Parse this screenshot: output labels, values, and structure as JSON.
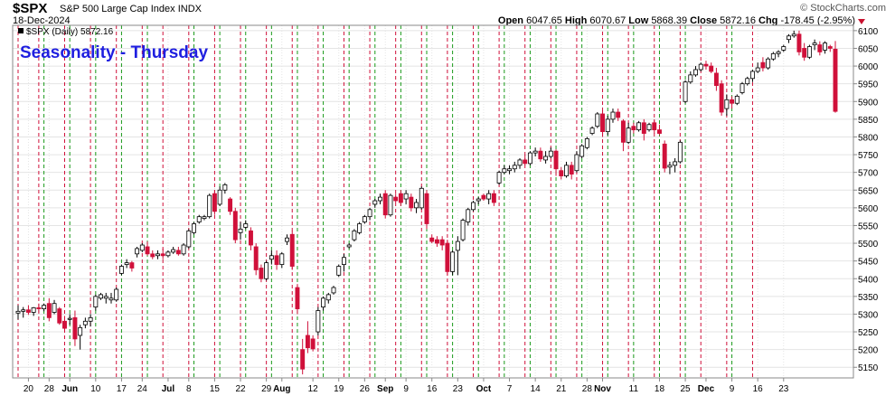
{
  "header": {
    "symbol": "$SPX",
    "name": "S&P 500 Large Cap Index",
    "exchange": "INDX",
    "date": "18-Dec-2024",
    "brand": "© StockCharts.com",
    "open_label": "Open",
    "open": "6047.65",
    "high_label": "High",
    "high": "6070.67",
    "low_label": "Low",
    "low": "5868.39",
    "close_label": "Close",
    "close": "5872.16",
    "chg_label": "Chg",
    "chg": "-178.45 (-2.95%)"
  },
  "colors": {
    "up": "#ffffff",
    "down": "#d0103a",
    "up_dark": "#000000",
    "green_line": "#1a9a1a",
    "red_line": "#d0103a",
    "title": "#1f1fe0"
  },
  "chart_data": {
    "type": "candlestick",
    "title": "Seasonality - Thursday",
    "legend": "$SPX (Daily) 5872.16",
    "ylim": [
      5120,
      6115
    ],
    "yticks": [
      5150,
      5200,
      5250,
      5300,
      5350,
      5400,
      5450,
      5500,
      5550,
      5600,
      5650,
      5700,
      5750,
      5800,
      5850,
      5900,
      5950,
      6000,
      6050,
      6100
    ],
    "x_tick_labels": [
      {
        "i": 2,
        "label": "20"
      },
      {
        "i": 6,
        "label": "28"
      },
      {
        "i": 10,
        "label": "Jun"
      },
      {
        "i": 15,
        "label": "10"
      },
      {
        "i": 20,
        "label": "17"
      },
      {
        "i": 24,
        "label": "24"
      },
      {
        "i": 29,
        "label": "Jul"
      },
      {
        "i": 33,
        "label": "8"
      },
      {
        "i": 38,
        "label": "15"
      },
      {
        "i": 43,
        "label": "22"
      },
      {
        "i": 48,
        "label": "29"
      },
      {
        "i": 51,
        "label": "Aug"
      },
      {
        "i": 57,
        "label": "12"
      },
      {
        "i": 62,
        "label": "19"
      },
      {
        "i": 67,
        "label": "26"
      },
      {
        "i": 71,
        "label": "Sep"
      },
      {
        "i": 75,
        "label": "9"
      },
      {
        "i": 80,
        "label": "16"
      },
      {
        "i": 85,
        "label": "23"
      },
      {
        "i": 90,
        "label": "Oct"
      },
      {
        "i": 95,
        "label": "7"
      },
      {
        "i": 100,
        "label": "14"
      },
      {
        "i": 105,
        "label": "21"
      },
      {
        "i": 110,
        "label": "28"
      },
      {
        "i": 113,
        "label": "Nov"
      },
      {
        "i": 119,
        "label": "11"
      },
      {
        "i": 124,
        "label": "18"
      },
      {
        "i": 129,
        "label": "25"
      },
      {
        "i": 133,
        "label": "Dec"
      },
      {
        "i": 138,
        "label": "9"
      },
      {
        "i": 143,
        "label": "16"
      },
      {
        "i": 148,
        "label": "23"
      }
    ],
    "thursday_red_lines": [
      0,
      4,
      9,
      14,
      19,
      24,
      28,
      33,
      38,
      43,
      48,
      53,
      58,
      63,
      68,
      73,
      78,
      83,
      88,
      93,
      98,
      103,
      108,
      113,
      118,
      123,
      128,
      132,
      137,
      142
    ],
    "friday_green_lines": [
      5,
      10,
      15,
      20,
      25,
      34,
      39,
      44,
      49,
      54,
      59,
      64,
      69,
      74,
      79,
      84,
      89,
      94,
      99,
      104,
      109,
      114,
      119,
      124,
      129,
      138
    ],
    "candles": [
      {
        "o": 5303,
        "h": 5325,
        "l": 5285,
        "c": 5308
      },
      {
        "o": 5308,
        "h": 5320,
        "l": 5290,
        "c": 5312
      },
      {
        "o": 5312,
        "h": 5325,
        "l": 5298,
        "c": 5305
      },
      {
        "o": 5305,
        "h": 5320,
        "l": 5295,
        "c": 5318
      },
      {
        "o": 5318,
        "h": 5330,
        "l": 5305,
        "c": 5315
      },
      {
        "o": 5315,
        "h": 5330,
        "l": 5308,
        "c": 5325
      },
      {
        "o": 5330,
        "h": 5345,
        "l": 5280,
        "c": 5290
      },
      {
        "o": 5305,
        "h": 5340,
        "l": 5300,
        "c": 5330
      },
      {
        "o": 5315,
        "h": 5320,
        "l": 5270,
        "c": 5275
      },
      {
        "o": 5280,
        "h": 5295,
        "l": 5250,
        "c": 5260
      },
      {
        "o": 5285,
        "h": 5300,
        "l": 5270,
        "c": 5288
      },
      {
        "o": 5290,
        "h": 5310,
        "l": 5210,
        "c": 5230
      },
      {
        "o": 5240,
        "h": 5270,
        "l": 5200,
        "c": 5262
      },
      {
        "o": 5270,
        "h": 5290,
        "l": 5260,
        "c": 5280
      },
      {
        "o": 5280,
        "h": 5300,
        "l": 5265,
        "c": 5290
      },
      {
        "o": 5320,
        "h": 5355,
        "l": 5310,
        "c": 5350
      },
      {
        "o": 5345,
        "h": 5360,
        "l": 5340,
        "c": 5355
      },
      {
        "o": 5345,
        "h": 5360,
        "l": 5330,
        "c": 5350
      },
      {
        "o": 5340,
        "h": 5360,
        "l": 5330,
        "c": 5345
      },
      {
        "o": 5340,
        "h": 5375,
        "l": 5335,
        "c": 5370
      },
      {
        "o": 5415,
        "h": 5440,
        "l": 5410,
        "c": 5435
      },
      {
        "o": 5440,
        "h": 5455,
        "l": 5430,
        "c": 5445
      },
      {
        "o": 5445,
        "h": 5450,
        "l": 5420,
        "c": 5430
      },
      {
        "o": 5470,
        "h": 5490,
        "l": 5460,
        "c": 5485
      },
      {
        "o": 5480,
        "h": 5500,
        "l": 5475,
        "c": 5495
      },
      {
        "o": 5490,
        "h": 5505,
        "l": 5465,
        "c": 5470
      },
      {
        "o": 5470,
        "h": 5480,
        "l": 5455,
        "c": 5462
      },
      {
        "o": 5465,
        "h": 5480,
        "l": 5455,
        "c": 5470
      },
      {
        "o": 5470,
        "h": 5485,
        "l": 5455,
        "c": 5465
      },
      {
        "o": 5465,
        "h": 5480,
        "l": 5460,
        "c": 5475
      },
      {
        "o": 5475,
        "h": 5490,
        "l": 5470,
        "c": 5482
      },
      {
        "o": 5480,
        "h": 5490,
        "l": 5465,
        "c": 5470
      },
      {
        "o": 5470,
        "h": 5500,
        "l": 5465,
        "c": 5495
      },
      {
        "o": 5490,
        "h": 5540,
        "l": 5485,
        "c": 5535
      },
      {
        "o": 5530,
        "h": 5560,
        "l": 5525,
        "c": 5555
      },
      {
        "o": 5560,
        "h": 5580,
        "l": 5555,
        "c": 5575
      },
      {
        "o": 5570,
        "h": 5580,
        "l": 5565,
        "c": 5575
      },
      {
        "o": 5575,
        "h": 5640,
        "l": 5570,
        "c": 5635
      },
      {
        "o": 5640,
        "h": 5650,
        "l": 5580,
        "c": 5590
      },
      {
        "o": 5610,
        "h": 5660,
        "l": 5605,
        "c": 5650
      },
      {
        "o": 5650,
        "h": 5670,
        "l": 5640,
        "c": 5665
      },
      {
        "o": 5625,
        "h": 5630,
        "l": 5580,
        "c": 5590
      },
      {
        "o": 5590,
        "h": 5600,
        "l": 5500,
        "c": 5510
      },
      {
        "o": 5530,
        "h": 5560,
        "l": 5510,
        "c": 5540
      },
      {
        "o": 5545,
        "h": 5565,
        "l": 5540,
        "c": 5555
      },
      {
        "o": 5535,
        "h": 5545,
        "l": 5480,
        "c": 5495
      },
      {
        "o": 5490,
        "h": 5500,
        "l": 5410,
        "c": 5425
      },
      {
        "o": 5430,
        "h": 5440,
        "l": 5390,
        "c": 5400
      },
      {
        "o": 5400,
        "h": 5450,
        "l": 5395,
        "c": 5445
      },
      {
        "o": 5455,
        "h": 5480,
        "l": 5440,
        "c": 5465
      },
      {
        "o": 5465,
        "h": 5480,
        "l": 5425,
        "c": 5440
      },
      {
        "o": 5440,
        "h": 5475,
        "l": 5430,
        "c": 5470
      },
      {
        "o": 5505,
        "h": 5525,
        "l": 5495,
        "c": 5515
      },
      {
        "o": 5525,
        "h": 5535,
        "l": 5425,
        "c": 5435
      },
      {
        "o": 5375,
        "h": 5385,
        "l": 5300,
        "c": 5315
      },
      {
        "o": 5200,
        "h": 5230,
        "l": 5130,
        "c": 5145
      },
      {
        "o": 5240,
        "h": 5280,
        "l": 5190,
        "c": 5205
      },
      {
        "o": 5230,
        "h": 5240,
        "l": 5195,
        "c": 5202
      },
      {
        "o": 5250,
        "h": 5320,
        "l": 5240,
        "c": 5310
      },
      {
        "o": 5320,
        "h": 5350,
        "l": 5310,
        "c": 5345
      },
      {
        "o": 5340,
        "h": 5360,
        "l": 5330,
        "c": 5355
      },
      {
        "o": 5360,
        "h": 5380,
        "l": 5355,
        "c": 5375
      },
      {
        "o": 5410,
        "h": 5440,
        "l": 5405,
        "c": 5435
      },
      {
        "o": 5440,
        "h": 5470,
        "l": 5420,
        "c": 5460
      },
      {
        "o": 5490,
        "h": 5500,
        "l": 5485,
        "c": 5495
      },
      {
        "o": 5510,
        "h": 5540,
        "l": 5505,
        "c": 5535
      },
      {
        "o": 5530,
        "h": 5560,
        "l": 5525,
        "c": 5555
      },
      {
        "o": 5560,
        "h": 5580,
        "l": 5555,
        "c": 5575
      },
      {
        "o": 5575,
        "h": 5600,
        "l": 5565,
        "c": 5595
      },
      {
        "o": 5610,
        "h": 5625,
        "l": 5600,
        "c": 5620
      },
      {
        "o": 5620,
        "h": 5640,
        "l": 5610,
        "c": 5630
      },
      {
        "o": 5640,
        "h": 5650,
        "l": 5570,
        "c": 5580
      },
      {
        "o": 5580,
        "h": 5640,
        "l": 5575,
        "c": 5635
      },
      {
        "o": 5630,
        "h": 5640,
        "l": 5615,
        "c": 5620
      },
      {
        "o": 5640,
        "h": 5650,
        "l": 5605,
        "c": 5615
      },
      {
        "o": 5625,
        "h": 5650,
        "l": 5610,
        "c": 5640
      },
      {
        "o": 5630,
        "h": 5640,
        "l": 5590,
        "c": 5600
      },
      {
        "o": 5600,
        "h": 5625,
        "l": 5585,
        "c": 5615
      },
      {
        "o": 5600,
        "h": 5660,
        "l": 5595,
        "c": 5655
      },
      {
        "o": 5640,
        "h": 5650,
        "l": 5540,
        "c": 5555
      },
      {
        "o": 5515,
        "h": 5525,
        "l": 5500,
        "c": 5505
      },
      {
        "o": 5510,
        "h": 5520,
        "l": 5490,
        "c": 5500
      },
      {
        "o": 5510,
        "h": 5520,
        "l": 5480,
        "c": 5495
      },
      {
        "o": 5500,
        "h": 5510,
        "l": 5410,
        "c": 5420
      },
      {
        "o": 5420,
        "h": 5480,
        "l": 5410,
        "c": 5475
      },
      {
        "o": 5480,
        "h": 5520,
        "l": 5410,
        "c": 5505
      },
      {
        "o": 5510,
        "h": 5570,
        "l": 5505,
        "c": 5565
      },
      {
        "o": 5560,
        "h": 5600,
        "l": 5550,
        "c": 5595
      },
      {
        "o": 5595,
        "h": 5620,
        "l": 5590,
        "c": 5615
      },
      {
        "o": 5620,
        "h": 5630,
        "l": 5610,
        "c": 5625
      },
      {
        "o": 5635,
        "h": 5640,
        "l": 5620,
        "c": 5625
      },
      {
        "o": 5625,
        "h": 5650,
        "l": 5610,
        "c": 5640
      },
      {
        "o": 5640,
        "h": 5650,
        "l": 5605,
        "c": 5615
      },
      {
        "o": 5670,
        "h": 5705,
        "l": 5665,
        "c": 5700
      },
      {
        "o": 5700,
        "h": 5720,
        "l": 5695,
        "c": 5710
      },
      {
        "o": 5705,
        "h": 5720,
        "l": 5695,
        "c": 5710
      },
      {
        "o": 5710,
        "h": 5730,
        "l": 5700,
        "c": 5720
      },
      {
        "o": 5720,
        "h": 5740,
        "l": 5710,
        "c": 5735
      },
      {
        "o": 5735,
        "h": 5750,
        "l": 5720,
        "c": 5725
      },
      {
        "o": 5725,
        "h": 5760,
        "l": 5720,
        "c": 5755
      },
      {
        "o": 5755,
        "h": 5770,
        "l": 5745,
        "c": 5760
      },
      {
        "o": 5760,
        "h": 5770,
        "l": 5730,
        "c": 5738
      },
      {
        "o": 5735,
        "h": 5760,
        "l": 5725,
        "c": 5745
      },
      {
        "o": 5745,
        "h": 5770,
        "l": 5740,
        "c": 5760
      },
      {
        "o": 5760,
        "h": 5765,
        "l": 5690,
        "c": 5710
      },
      {
        "o": 5705,
        "h": 5715,
        "l": 5680,
        "c": 5690
      },
      {
        "o": 5690,
        "h": 5730,
        "l": 5685,
        "c": 5720
      },
      {
        "o": 5720,
        "h": 5730,
        "l": 5680,
        "c": 5695
      },
      {
        "o": 5705,
        "h": 5760,
        "l": 5700,
        "c": 5750
      },
      {
        "o": 5745,
        "h": 5780,
        "l": 5740,
        "c": 5775
      },
      {
        "o": 5770,
        "h": 5800,
        "l": 5765,
        "c": 5795
      },
      {
        "o": 5810,
        "h": 5830,
        "l": 5805,
        "c": 5825
      },
      {
        "o": 5830,
        "h": 5870,
        "l": 5825,
        "c": 5865
      },
      {
        "o": 5865,
        "h": 5875,
        "l": 5800,
        "c": 5815
      },
      {
        "o": 5815,
        "h": 5860,
        "l": 5805,
        "c": 5850
      },
      {
        "o": 5850,
        "h": 5880,
        "l": 5840,
        "c": 5870
      },
      {
        "o": 5870,
        "h": 5880,
        "l": 5845,
        "c": 5855
      },
      {
        "o": 5845,
        "h": 5850,
        "l": 5760,
        "c": 5785
      },
      {
        "o": 5785,
        "h": 5840,
        "l": 5780,
        "c": 5825
      },
      {
        "o": 5830,
        "h": 5840,
        "l": 5810,
        "c": 5820
      },
      {
        "o": 5820,
        "h": 5845,
        "l": 5815,
        "c": 5840
      },
      {
        "o": 5840,
        "h": 5850,
        "l": 5790,
        "c": 5810
      },
      {
        "o": 5820,
        "h": 5840,
        "l": 5815,
        "c": 5835
      },
      {
        "o": 5840,
        "h": 5850,
        "l": 5810,
        "c": 5820
      },
      {
        "o": 5820,
        "h": 5835,
        "l": 5805,
        "c": 5810
      },
      {
        "o": 5780,
        "h": 5790,
        "l": 5700,
        "c": 5712
      },
      {
        "o": 5715,
        "h": 5730,
        "l": 5695,
        "c": 5720
      },
      {
        "o": 5720,
        "h": 5740,
        "l": 5700,
        "c": 5730
      },
      {
        "o": 5730,
        "h": 5790,
        "l": 5725,
        "c": 5785
      },
      {
        "o": 5900,
        "h": 5960,
        "l": 5895,
        "c": 5955
      },
      {
        "o": 5955,
        "h": 5985,
        "l": 5950,
        "c": 5975
      },
      {
        "o": 5975,
        "h": 6000,
        "l": 5970,
        "c": 5990
      },
      {
        "o": 5990,
        "h": 6010,
        "l": 5985,
        "c": 6005
      },
      {
        "o": 6005,
        "h": 6015,
        "l": 5990,
        "c": 6000
      },
      {
        "o": 6000,
        "h": 6010,
        "l": 5980,
        "c": 5985
      },
      {
        "o": 5980,
        "h": 5995,
        "l": 5930,
        "c": 5945
      },
      {
        "o": 5950,
        "h": 5960,
        "l": 5860,
        "c": 5870
      },
      {
        "o": 5880,
        "h": 5920,
        "l": 5860,
        "c": 5905
      },
      {
        "o": 5905,
        "h": 5915,
        "l": 5880,
        "c": 5895
      },
      {
        "o": 5895,
        "h": 5920,
        "l": 5890,
        "c": 5915
      },
      {
        "o": 5925,
        "h": 5955,
        "l": 5920,
        "c": 5950
      },
      {
        "o": 5950,
        "h": 5970,
        "l": 5945,
        "c": 5965
      },
      {
        "o": 5965,
        "h": 5990,
        "l": 5955,
        "c": 5985
      },
      {
        "o": 5985,
        "h": 6010,
        "l": 5980,
        "c": 5995
      },
      {
        "o": 6010,
        "h": 6025,
        "l": 5985,
        "c": 5995
      },
      {
        "o": 5995,
        "h": 6025,
        "l": 5990,
        "c": 6020
      },
      {
        "o": 6020,
        "h": 6040,
        "l": 6015,
        "c": 6035
      },
      {
        "o": 6035,
        "h": 6045,
        "l": 6025,
        "c": 6040
      },
      {
        "o": 6045,
        "h": 6060,
        "l": 6040,
        "c": 6055
      },
      {
        "o": 6075,
        "h": 6090,
        "l": 6065,
        "c": 6085
      },
      {
        "o": 6085,
        "h": 6100,
        "l": 6080,
        "c": 6090
      },
      {
        "o": 6090,
        "h": 6100,
        "l": 6030,
        "c": 6040
      },
      {
        "o": 6050,
        "h": 6065,
        "l": 6015,
        "c": 6025
      },
      {
        "o": 6025,
        "h": 6060,
        "l": 6020,
        "c": 6055
      },
      {
        "o": 6060,
        "h": 6075,
        "l": 6045,
        "c": 6065
      },
      {
        "o": 6060,
        "h": 6070,
        "l": 6030,
        "c": 6040
      },
      {
        "o": 6045,
        "h": 6070,
        "l": 6035,
        "c": 6065
      },
      {
        "o": 6055,
        "h": 6060,
        "l": 6040,
        "c": 6050
      },
      {
        "o": 6047.65,
        "h": 6070.67,
        "l": 5868.39,
        "c": 5872.16
      }
    ]
  }
}
